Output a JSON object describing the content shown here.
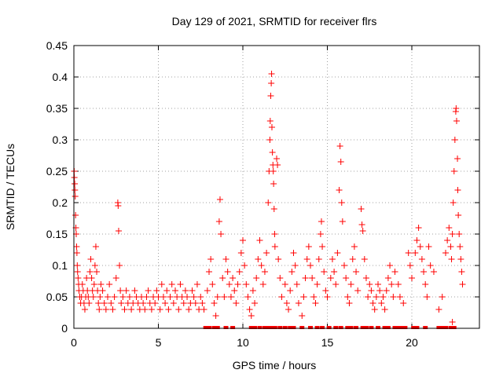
{
  "chart_data": {
    "type": "scatter",
    "title": "Day 129 of 2021, SRMTID for receiver flrs",
    "xlabel": "GPS time / hours",
    "ylabel": "SRMTID / TECUs",
    "xlim": [
      0,
      24
    ],
    "ylim": [
      0,
      0.45
    ],
    "xticks": [
      0,
      5,
      10,
      15,
      20
    ],
    "yticks": [
      0,
      0.05,
      0.1,
      0.15,
      0.2,
      0.25,
      0.3,
      0.35,
      0.4,
      0.45
    ],
    "ytick_labels": [
      "0",
      "0.05",
      "0.1",
      "0.15",
      "0.2",
      "0.25",
      "0.3",
      "0.35",
      "0.4",
      "0.45"
    ],
    "grid": true,
    "marker": "plus",
    "color": "#ff0000",
    "series": [
      {
        "points": [
          [
            0.02,
            0.25
          ],
          [
            0.03,
            0.24
          ],
          [
            0.05,
            0.23
          ],
          [
            0.06,
            0.22
          ],
          [
            0.08,
            0.21
          ],
          [
            0.1,
            0.18
          ],
          [
            0.12,
            0.16
          ],
          [
            0.14,
            0.15
          ],
          [
            0.16,
            0.13
          ],
          [
            0.18,
            0.12
          ],
          [
            0.2,
            0.1
          ],
          [
            0.22,
            0.09
          ],
          [
            0.25,
            0.08
          ],
          [
            0.28,
            0.07
          ],
          [
            0.3,
            0.06
          ],
          [
            0.35,
            0.05
          ],
          [
            0.4,
            0.04
          ],
          [
            0.45,
            0.05
          ],
          [
            0.5,
            0.07
          ],
          [
            0.55,
            0.06
          ],
          [
            0.6,
            0.04
          ],
          [
            0.65,
            0.03
          ],
          [
            0.7,
            0.05
          ],
          [
            0.75,
            0.08
          ],
          [
            0.8,
            0.06
          ],
          [
            0.85,
            0.05
          ],
          [
            0.9,
            0.04
          ],
          [
            0.95,
            0.09
          ],
          [
            1.0,
            0.11
          ],
          [
            1.05,
            0.08
          ],
          [
            1.1,
            0.06
          ],
          [
            1.15,
            0.05
          ],
          [
            1.2,
            0.07
          ],
          [
            1.25,
            0.1
          ],
          [
            1.3,
            0.13
          ],
          [
            1.35,
            0.09
          ],
          [
            1.4,
            0.06
          ],
          [
            1.45,
            0.04
          ],
          [
            1.5,
            0.03
          ],
          [
            1.55,
            0.05
          ],
          [
            1.6,
            0.07
          ],
          [
            1.7,
            0.06
          ],
          [
            1.8,
            0.04
          ],
          [
            1.9,
            0.03
          ],
          [
            2.0,
            0.05
          ],
          [
            2.1,
            0.07
          ],
          [
            2.2,
            0.04
          ],
          [
            2.3,
            0.03
          ],
          [
            2.4,
            0.05
          ],
          [
            2.5,
            0.08
          ],
          [
            2.6,
            0.2
          ],
          [
            2.62,
            0.195
          ],
          [
            2.65,
            0.155
          ],
          [
            2.7,
            0.1
          ],
          [
            2.75,
            0.06
          ],
          [
            2.8,
            0.04
          ],
          [
            2.9,
            0.05
          ],
          [
            3.0,
            0.03
          ],
          [
            3.1,
            0.06
          ],
          [
            3.2,
            0.04
          ],
          [
            3.3,
            0.05
          ],
          [
            3.4,
            0.03
          ],
          [
            3.5,
            0.04
          ],
          [
            3.6,
            0.06
          ],
          [
            3.7,
            0.05
          ],
          [
            3.8,
            0.04
          ],
          [
            3.9,
            0.03
          ],
          [
            4.0,
            0.05
          ],
          [
            4.1,
            0.04
          ],
          [
            4.2,
            0.03
          ],
          [
            4.3,
            0.05
          ],
          [
            4.4,
            0.06
          ],
          [
            4.5,
            0.04
          ],
          [
            4.6,
            0.03
          ],
          [
            4.7,
            0.05
          ],
          [
            4.8,
            0.04
          ],
          [
            4.9,
            0.06
          ],
          [
            5.0,
            0.05
          ],
          [
            5.1,
            0.03
          ],
          [
            5.2,
            0.07
          ],
          [
            5.3,
            0.05
          ],
          [
            5.4,
            0.04
          ],
          [
            5.5,
            0.06
          ],
          [
            5.6,
            0.03
          ],
          [
            5.7,
            0.05
          ],
          [
            5.8,
            0.07
          ],
          [
            5.9,
            0.04
          ],
          [
            6.0,
            0.06
          ],
          [
            6.1,
            0.05
          ],
          [
            6.2,
            0.03
          ],
          [
            6.3,
            0.07
          ],
          [
            6.4,
            0.05
          ],
          [
            6.5,
            0.04
          ],
          [
            6.6,
            0.06
          ],
          [
            6.7,
            0.05
          ],
          [
            6.8,
            0.03
          ],
          [
            6.9,
            0.04
          ],
          [
            7.0,
            0.06
          ],
          [
            7.1,
            0.05
          ],
          [
            7.2,
            0.04
          ],
          [
            7.3,
            0.07
          ],
          [
            7.4,
            0.03
          ],
          [
            7.5,
            0.05
          ],
          [
            7.6,
            0.04
          ],
          [
            7.7,
            0.03
          ],
          [
            7.9,
            0.06
          ],
          [
            8.0,
            0.09
          ],
          [
            8.1,
            0.11
          ],
          [
            8.2,
            0.07
          ],
          [
            8.3,
            0.04
          ],
          [
            8.4,
            0.02
          ],
          [
            8.5,
            0.05
          ],
          [
            8.6,
            0.17
          ],
          [
            8.65,
            0.205
          ],
          [
            8.7,
            0.15
          ],
          [
            8.8,
            0.08
          ],
          [
            8.9,
            0.05
          ],
          [
            9.0,
            0.11
          ],
          [
            9.1,
            0.09
          ],
          [
            9.2,
            0.07
          ],
          [
            9.3,
            0.05
          ],
          [
            9.4,
            0.08
          ],
          [
            9.5,
            0.06
          ],
          [
            9.6,
            0.04
          ],
          [
            9.7,
            0.07
          ],
          [
            9.8,
            0.09
          ],
          [
            9.9,
            0.12
          ],
          [
            10.0,
            0.14
          ],
          [
            10.1,
            0.1
          ],
          [
            10.2,
            0.07
          ],
          [
            10.3,
            0.05
          ],
          [
            10.4,
            0.03
          ],
          [
            10.5,
            0.02
          ],
          [
            10.6,
            0.06
          ],
          [
            10.7,
            0.04
          ],
          [
            10.8,
            0.08
          ],
          [
            10.9,
            0.11
          ],
          [
            11.0,
            0.14
          ],
          [
            11.1,
            0.1
          ],
          [
            11.2,
            0.07
          ],
          [
            11.3,
            0.09
          ],
          [
            11.4,
            0.12
          ],
          [
            11.5,
            0.2
          ],
          [
            11.55,
            0.25
          ],
          [
            11.6,
            0.3
          ],
          [
            11.62,
            0.33
          ],
          [
            11.65,
            0.37
          ],
          [
            11.68,
            0.39
          ],
          [
            11.7,
            0.405
          ],
          [
            11.72,
            0.32
          ],
          [
            11.75,
            0.28
          ],
          [
            11.78,
            0.26
          ],
          [
            11.8,
            0.25
          ],
          [
            11.82,
            0.23
          ],
          [
            11.85,
            0.19
          ],
          [
            11.88,
            0.15
          ],
          [
            11.9,
            0.13
          ],
          [
            12.0,
            0.27
          ],
          [
            12.05,
            0.26
          ],
          [
            12.1,
            0.11
          ],
          [
            12.2,
            0.08
          ],
          [
            12.3,
            0.05
          ],
          [
            12.5,
            0.07
          ],
          [
            12.6,
            0.04
          ],
          [
            12.7,
            0.03
          ],
          [
            12.8,
            0.06
          ],
          [
            12.9,
            0.09
          ],
          [
            13.0,
            0.12
          ],
          [
            13.1,
            0.1
          ],
          [
            13.2,
            0.07
          ],
          [
            13.3,
            0.04
          ],
          [
            13.5,
            0.02
          ],
          [
            13.6,
            0.05
          ],
          [
            13.7,
            0.08
          ],
          [
            13.8,
            0.11
          ],
          [
            13.9,
            0.13
          ],
          [
            14.0,
            0.1
          ],
          [
            14.1,
            0.08
          ],
          [
            14.2,
            0.05
          ],
          [
            14.3,
            0.04
          ],
          [
            14.4,
            0.07
          ],
          [
            14.5,
            0.11
          ],
          [
            14.6,
            0.15
          ],
          [
            14.65,
            0.17
          ],
          [
            14.7,
            0.13
          ],
          [
            14.8,
            0.09
          ],
          [
            14.9,
            0.06
          ],
          [
            15.0,
            0.05
          ],
          [
            15.2,
            0.08
          ],
          [
            15.3,
            0.11
          ],
          [
            15.4,
            0.09
          ],
          [
            15.5,
            0.07
          ],
          [
            15.6,
            0.12
          ],
          [
            15.7,
            0.22
          ],
          [
            15.75,
            0.29
          ],
          [
            15.8,
            0.265
          ],
          [
            15.85,
            0.2
          ],
          [
            15.9,
            0.17
          ],
          [
            16.0,
            0.1
          ],
          [
            16.1,
            0.08
          ],
          [
            16.2,
            0.05
          ],
          [
            16.3,
            0.04
          ],
          [
            16.4,
            0.07
          ],
          [
            16.5,
            0.11
          ],
          [
            16.6,
            0.13
          ],
          [
            16.7,
            0.09
          ],
          [
            16.8,
            0.06
          ],
          [
            17.0,
            0.19
          ],
          [
            17.05,
            0.165
          ],
          [
            17.1,
            0.155
          ],
          [
            17.2,
            0.11
          ],
          [
            17.3,
            0.08
          ],
          [
            17.4,
            0.05
          ],
          [
            17.5,
            0.07
          ],
          [
            17.6,
            0.06
          ],
          [
            17.7,
            0.04
          ],
          [
            17.8,
            0.03
          ],
          [
            17.9,
            0.05
          ],
          [
            18.0,
            0.07
          ],
          [
            18.1,
            0.06
          ],
          [
            18.2,
            0.04
          ],
          [
            18.3,
            0.05
          ],
          [
            18.4,
            0.03
          ],
          [
            18.5,
            0.06
          ],
          [
            18.6,
            0.08
          ],
          [
            18.7,
            0.1
          ],
          [
            18.8,
            0.07
          ],
          [
            18.9,
            0.05
          ],
          [
            19.0,
            0.09
          ],
          [
            19.2,
            0.07
          ],
          [
            19.3,
            0.05
          ],
          [
            19.5,
            0.04
          ],
          [
            19.8,
            0.12
          ],
          [
            19.9,
            0.1
          ],
          [
            20.0,
            0.08
          ],
          [
            20.2,
            0.12
          ],
          [
            20.3,
            0.14
          ],
          [
            20.4,
            0.16
          ],
          [
            20.5,
            0.13
          ],
          [
            20.6,
            0.11
          ],
          [
            20.7,
            0.09
          ],
          [
            20.8,
            0.07
          ],
          [
            20.9,
            0.05
          ],
          [
            21.0,
            0.13
          ],
          [
            21.1,
            0.1
          ],
          [
            21.3,
            0.09
          ],
          [
            21.6,
            0.03
          ],
          [
            21.8,
            0.05
          ],
          [
            22.0,
            0.12
          ],
          [
            22.1,
            0.14
          ],
          [
            22.2,
            0.16
          ],
          [
            22.3,
            0.13
          ],
          [
            22.35,
            0.11
          ],
          [
            22.4,
            0.15
          ],
          [
            22.45,
            0.2
          ],
          [
            22.5,
            0.25
          ],
          [
            22.55,
            0.3
          ],
          [
            22.6,
            0.345
          ],
          [
            22.62,
            0.35
          ],
          [
            22.65,
            0.33
          ],
          [
            22.7,
            0.27
          ],
          [
            22.72,
            0.22
          ],
          [
            22.75,
            0.18
          ],
          [
            22.8,
            0.15
          ],
          [
            22.85,
            0.13
          ],
          [
            22.9,
            0.11
          ],
          [
            22.95,
            0.09
          ],
          [
            23.0,
            0.07
          ],
          [
            22.4,
            0.01
          ]
        ]
      },
      {
        "name": "",
        "baseline_points": [
          7.8,
          8.0,
          8.3,
          8.5,
          9.0,
          9.4,
          10.5,
          10.7,
          11.0,
          11.3,
          11.5,
          11.7,
          11.9,
          12.2,
          12.5,
          12.8,
          13.0,
          13.5,
          14.0,
          14.4,
          14.7,
          15.1,
          15.5,
          15.8,
          16.2,
          16.4,
          16.7,
          17.1,
          17.3,
          17.6,
          18.0,
          18.4,
          18.6,
          19.0,
          19.2,
          19.4,
          19.6,
          20.1,
          20.3,
          20.8,
          21.6,
          21.8,
          22.0,
          22.3,
          22.5
        ]
      }
    ]
  }
}
